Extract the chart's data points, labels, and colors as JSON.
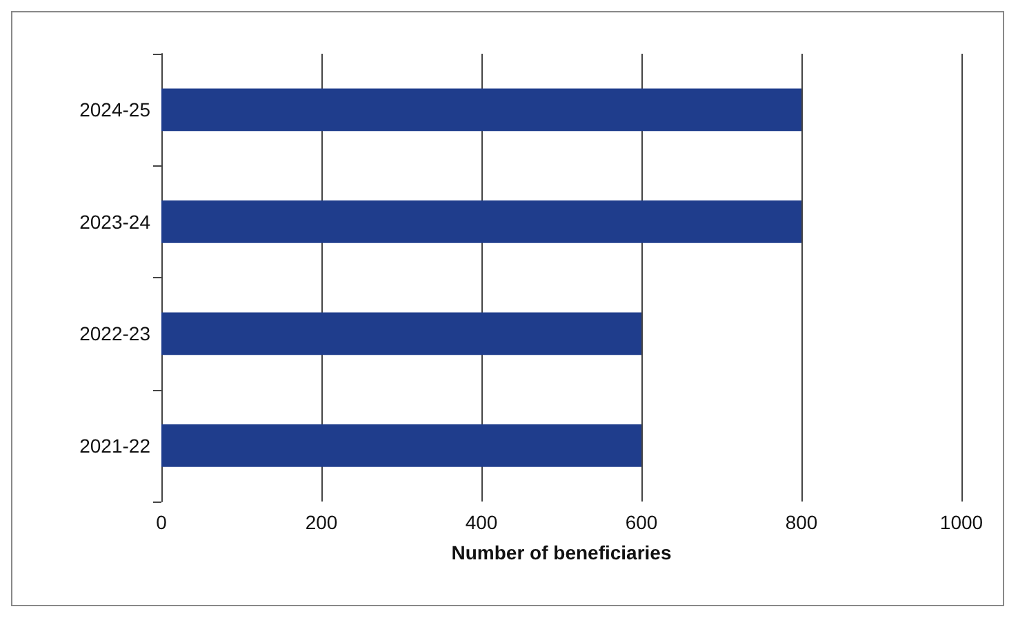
{
  "chart_data": {
    "type": "bar",
    "orientation": "horizontal",
    "xlabel": "Number of beneficiaries",
    "categories": [
      "2024-25",
      "2023-24",
      "2022-23",
      "2021-22"
    ],
    "values": [
      800,
      800,
      600,
      600
    ],
    "color": "#1f3d8c",
    "xlim": [
      0,
      1000
    ],
    "xticks": [
      0,
      200,
      400,
      600,
      800,
      1000
    ],
    "grid": "x"
  }
}
